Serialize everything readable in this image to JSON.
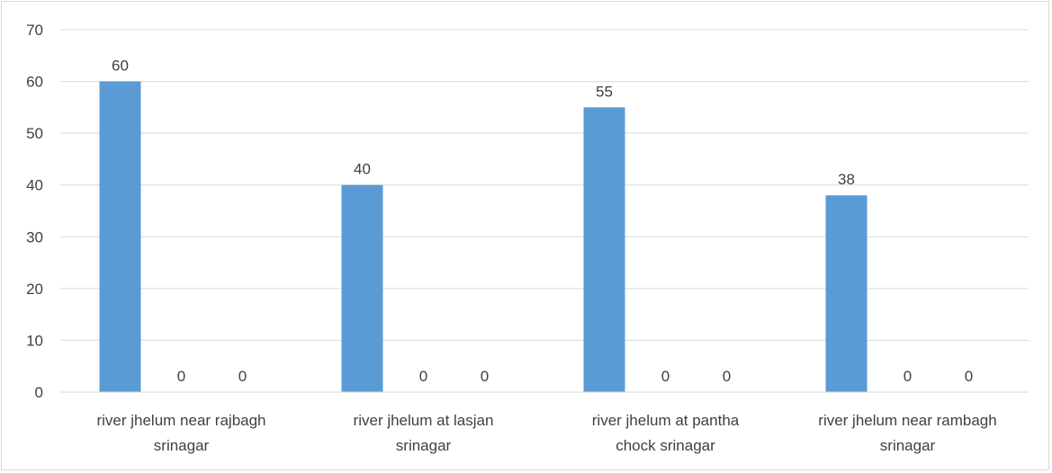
{
  "chart_data": {
    "type": "bar",
    "categories": [
      [
        "river jhelum near rajbagh",
        "srinagar"
      ],
      [
        "river jhelum at lasjan",
        "srinagar"
      ],
      [
        "river jhelum at pantha",
        "chock srinagar"
      ],
      [
        "river jhelum near rambagh",
        "srinagar"
      ]
    ],
    "series": [
      {
        "values": [
          60,
          40,
          55,
          38
        ],
        "color": "#5b9bd5"
      },
      {
        "values": [
          0,
          0,
          0,
          0
        ],
        "color": "#ed7d31"
      },
      {
        "values": [
          0,
          0,
          0,
          0
        ],
        "color": "#a5a5a5"
      }
    ],
    "ylim": [
      0,
      70
    ],
    "yticks": [
      0,
      10,
      20,
      30,
      40,
      50,
      60,
      70
    ],
    "title": "",
    "xlabel": "",
    "ylabel": "",
    "grid": true,
    "data_labels": true
  }
}
